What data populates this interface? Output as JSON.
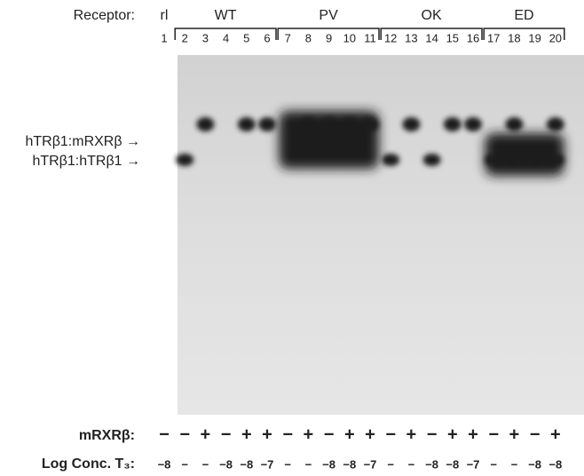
{
  "receptor_label": "Receptor:",
  "first_lane_label": "rl",
  "groups": [
    "WT",
    "PV",
    "OK",
    "ED"
  ],
  "lanes": [
    1,
    2,
    3,
    4,
    5,
    6,
    7,
    8,
    9,
    10,
    11,
    12,
    13,
    14,
    15,
    16,
    17,
    18,
    19,
    20
  ],
  "bands": [
    "hTRβ1:mRXRβ →",
    "hTRβ1:hTRβ1 →"
  ],
  "rows": [
    {
      "label": "mRXRβ:",
      "values": [
        "−",
        "−",
        "+",
        "−",
        "+",
        "+",
        "−",
        "+",
        "−",
        "+",
        "+",
        "−",
        "+",
        "−",
        "+",
        "+",
        "−",
        "+",
        "−",
        "+"
      ]
    },
    {
      "label": "Log Conc. T₃:",
      "values": [
        "−8",
        "−",
        "−",
        "−8",
        "−8",
        "−7",
        "−",
        "−",
        "−8",
        "−8",
        "−7",
        "−",
        "−",
        "−8",
        "−8",
        "−7",
        "−",
        "−",
        "−8",
        "−8"
      ]
    }
  ]
}
